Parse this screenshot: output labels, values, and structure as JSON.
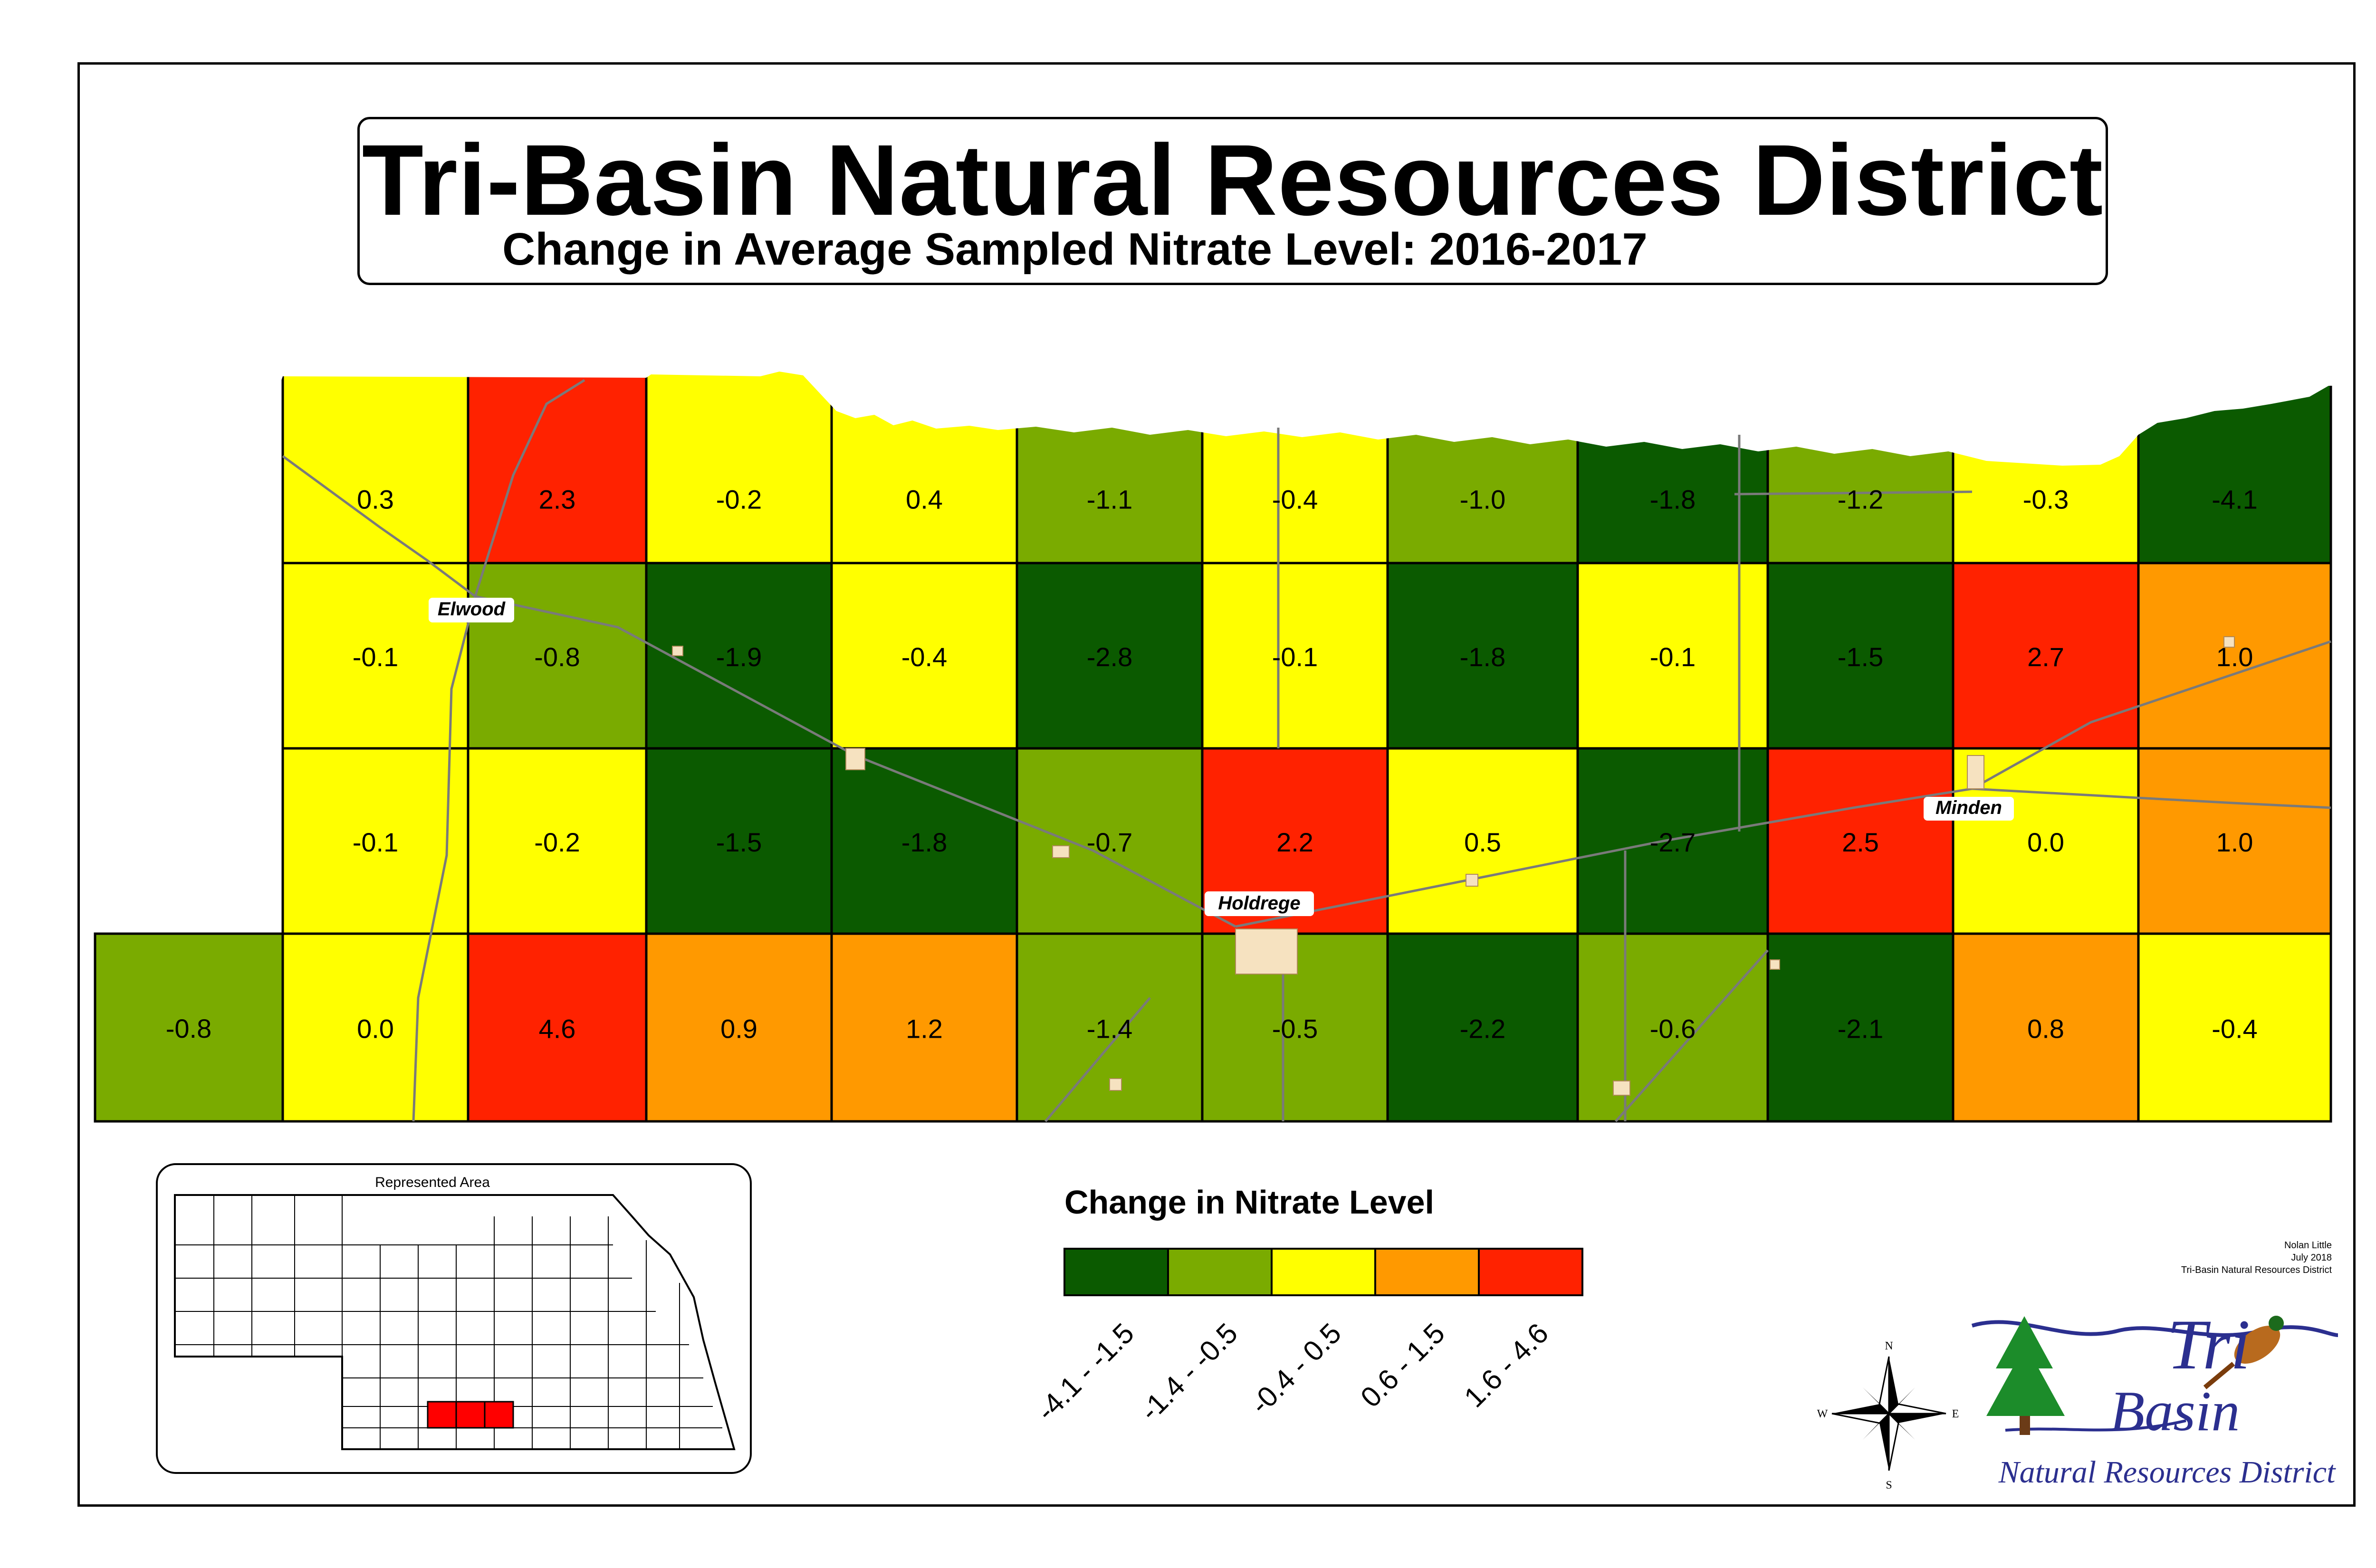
{
  "title": "Tri-Basin Natural Resources District",
  "subtitle": "Change in Average Sampled Nitrate Level: 2016-2017",
  "legend": {
    "title": "Change in Nitrate Level",
    "classes": [
      {
        "label": "-4.1 - -1.5",
        "color": "#0b5a00"
      },
      {
        "label": "-1.4 - -0.5",
        "color": "#7aab00"
      },
      {
        "label": "-0.4 - 0.5",
        "color": "#ffff00"
      },
      {
        "label": "0.6 - 1.5",
        "color": "#ff9900"
      },
      {
        "label": "1.6 - 4.6",
        "color": "#ff2200"
      }
    ]
  },
  "grid": {
    "columns": 11,
    "rows": [
      [
        0.3,
        2.3,
        -0.2,
        0.4,
        -1.1,
        -0.4,
        -1.0,
        -1.8,
        -1.2,
        -0.3,
        -4.1
      ],
      [
        -0.1,
        -0.8,
        -1.9,
        -0.4,
        -2.8,
        -0.1,
        -1.8,
        -0.1,
        -1.5,
        2.7,
        1.0
      ],
      [
        -0.1,
        -0.2,
        -1.5,
        -1.8,
        -0.7,
        2.2,
        0.5,
        -2.7,
        2.5,
        0.0,
        1.0
      ],
      [
        0.0,
        4.6,
        0.9,
        1.2,
        -1.4,
        -0.5,
        -2.2,
        -0.6,
        -2.1,
        0.8,
        -0.4
      ]
    ],
    "extra_west_cell": -0.8
  },
  "towns": [
    "Elwood",
    "Holdrege",
    "Minden"
  ],
  "inset": {
    "title": "Represented Area"
  },
  "compass": {
    "n": "N",
    "s": "S",
    "e": "E",
    "w": "W"
  },
  "credit": [
    "Nolan Little",
    "July 2018",
    "Tri-Basin Natural Resources District"
  ],
  "logo": {
    "line1": "Tri",
    "line2": "Basin",
    "line3": "Natural Resources District"
  }
}
